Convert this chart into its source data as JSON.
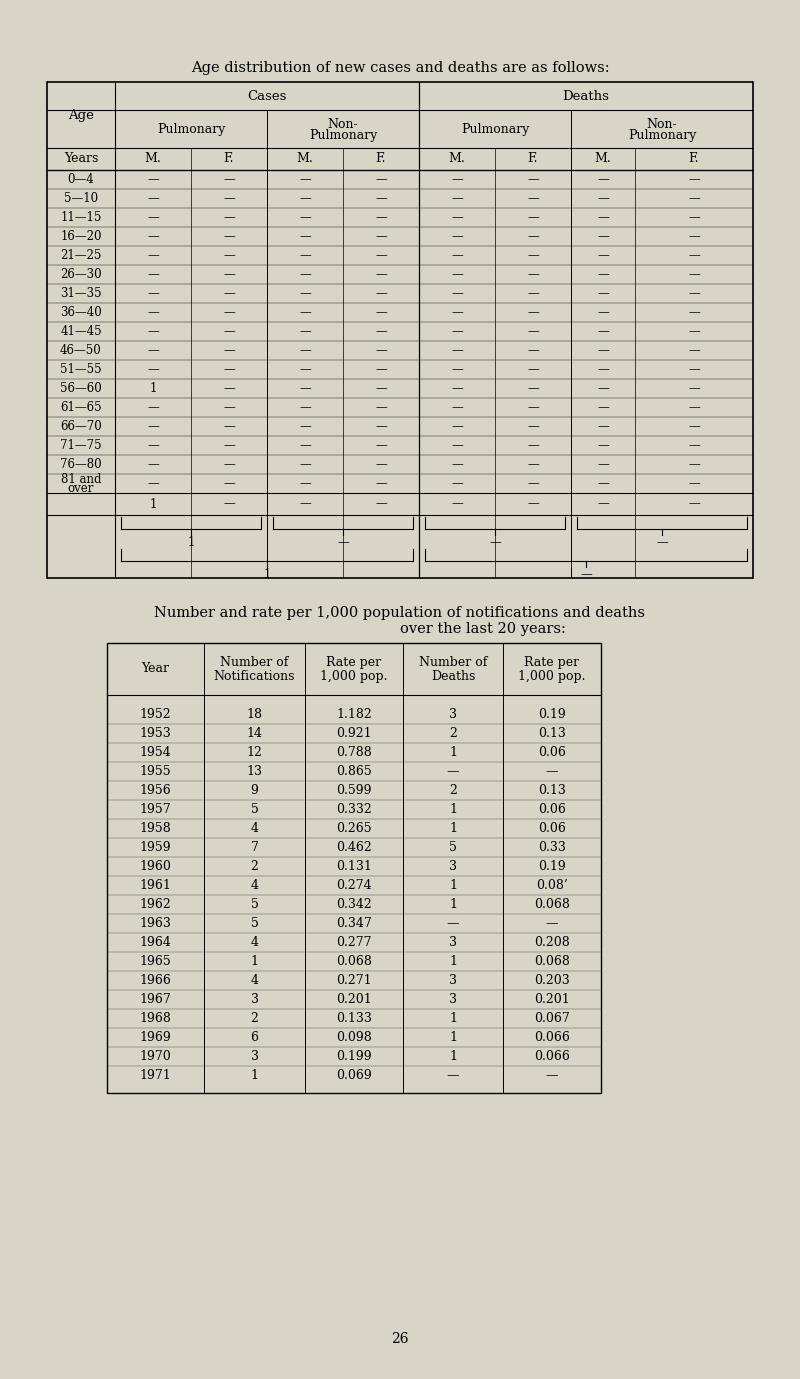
{
  "title1": "Age distribution of new cases and deaths are as follows:",
  "title2_line1": "Number and rate per 1,000 population of notifications and deaths",
  "title2_line2": "over the last 20 years:",
  "bg_color": "#d8d5c7",
  "page_num": "26",
  "age_rows": [
    "0—4",
    "5—10",
    "11—15",
    "16—20",
    "21—25",
    "26—30",
    "31—35",
    "36—40",
    "41—45",
    "46—50",
    "51—55",
    "56—60",
    "61—65",
    "66—70",
    "71—75",
    "76—80",
    "81 and\nover"
  ],
  "age_data": [
    [
      "—",
      "—",
      "—",
      "—",
      "—",
      "—",
      "—",
      "—"
    ],
    [
      "—",
      "—",
      "—",
      "—",
      "—",
      "—",
      "—",
      "—"
    ],
    [
      "—",
      "—",
      "—",
      "—",
      "—",
      "—",
      "—",
      "—"
    ],
    [
      "—",
      "—",
      "—",
      "—",
      "—",
      "—",
      "—",
      "—"
    ],
    [
      "—",
      "—",
      "—",
      "—",
      "—",
      "—",
      "—",
      "—"
    ],
    [
      "—",
      "—",
      "—",
      "—",
      "—",
      "—",
      "—",
      "—"
    ],
    [
      "—",
      "—",
      "—",
      "—",
      "—",
      "—",
      "—",
      "—"
    ],
    [
      "—",
      "—",
      "—",
      "—",
      "—",
      "—",
      "—",
      "—"
    ],
    [
      "—",
      "—",
      "—",
      "—",
      "—",
      "—",
      "—",
      "—"
    ],
    [
      "—",
      "—",
      "—",
      "—",
      "—",
      "—",
      "—",
      "—"
    ],
    [
      "—",
      "—",
      "—",
      "—",
      "—",
      "—",
      "—",
      "—"
    ],
    [
      "1",
      "—",
      "—",
      "—",
      "—",
      "—",
      "—",
      "—"
    ],
    [
      "—",
      "—",
      "—",
      "—",
      "—",
      "—",
      "—",
      "—"
    ],
    [
      "—",
      "—",
      "—",
      "—",
      "—",
      "—",
      "—",
      "—"
    ],
    [
      "—",
      "—",
      "—",
      "—",
      "—",
      "—",
      "—",
      "—"
    ],
    [
      "—",
      "—",
      "—",
      "—",
      "—",
      "—",
      "—",
      "—"
    ],
    [
      "—",
      "—",
      "—",
      "—",
      "—",
      "—",
      "—",
      "—"
    ]
  ],
  "age_totals": [
    "1",
    "—",
    "—",
    "—",
    "—",
    "—",
    "—",
    "—"
  ],
  "brace1_vals": [
    "1",
    "—",
    "—",
    "—"
  ],
  "brace2_vals": [
    "1",
    "—"
  ],
  "stats_years": [
    1952,
    1953,
    1954,
    1955,
    1956,
    1957,
    1958,
    1959,
    1960,
    1961,
    1962,
    1963,
    1964,
    1965,
    1966,
    1967,
    1968,
    1969,
    1970,
    1971
  ],
  "stats_notif": [
    18,
    14,
    12,
    13,
    9,
    5,
    4,
    7,
    2,
    4,
    5,
    5,
    4,
    1,
    4,
    3,
    2,
    6,
    3,
    1
  ],
  "stats_notif_rate": [
    "1.182",
    "0.921",
    "0.788",
    "0.865",
    "0.599",
    "0.332",
    "0.265",
    "0.462",
    "0.131",
    "0.274",
    "0.342",
    "0.347",
    "0.277",
    "0.068",
    "0.271",
    "0.201",
    "0.133",
    "0.098",
    "0.199",
    "0.069"
  ],
  "stats_deaths": [
    "3",
    "2",
    "1",
    "—",
    "2",
    "1",
    "1",
    "5",
    "3",
    "1",
    "1",
    "—",
    "3",
    "1",
    "3",
    "3",
    "1",
    "1",
    "1",
    "—"
  ],
  "stats_deaths_rate": [
    "0.19",
    "0.13",
    "0.06",
    "—",
    "0.13",
    "0.06",
    "0.06",
    "0.33",
    "0.19",
    "0.08’",
    "0.068",
    "—",
    "0.208",
    "0.068",
    "0.203",
    "0.201",
    "0.067",
    "0.066",
    "0.066",
    "—"
  ]
}
